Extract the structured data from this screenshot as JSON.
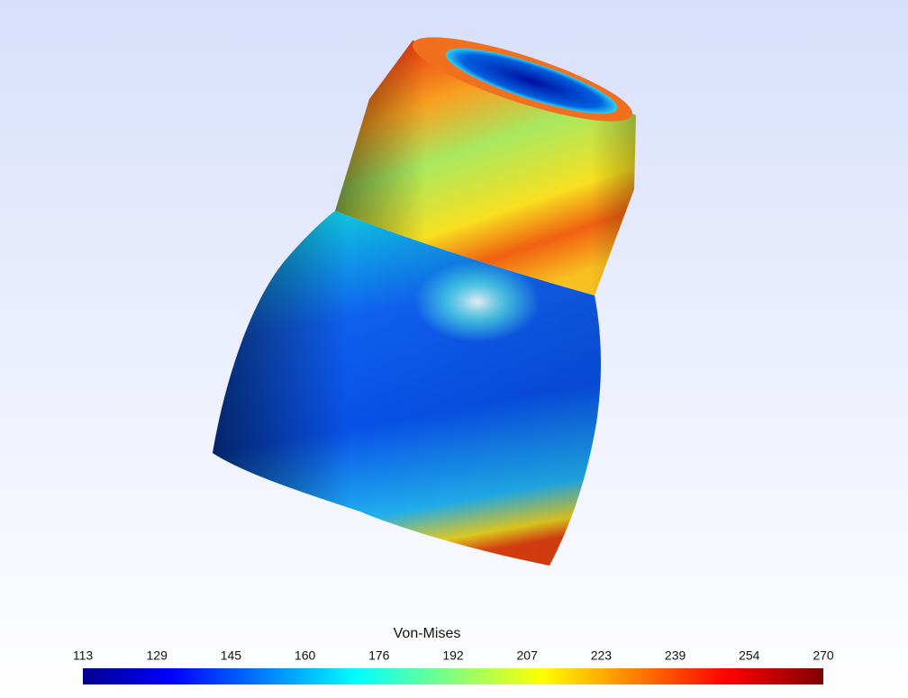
{
  "colorbar": {
    "title": "Von-Mises",
    "ticks": [
      "113",
      "129",
      "145",
      "160",
      "176",
      "192",
      "207",
      "223",
      "239",
      "254",
      "270"
    ]
  }
}
